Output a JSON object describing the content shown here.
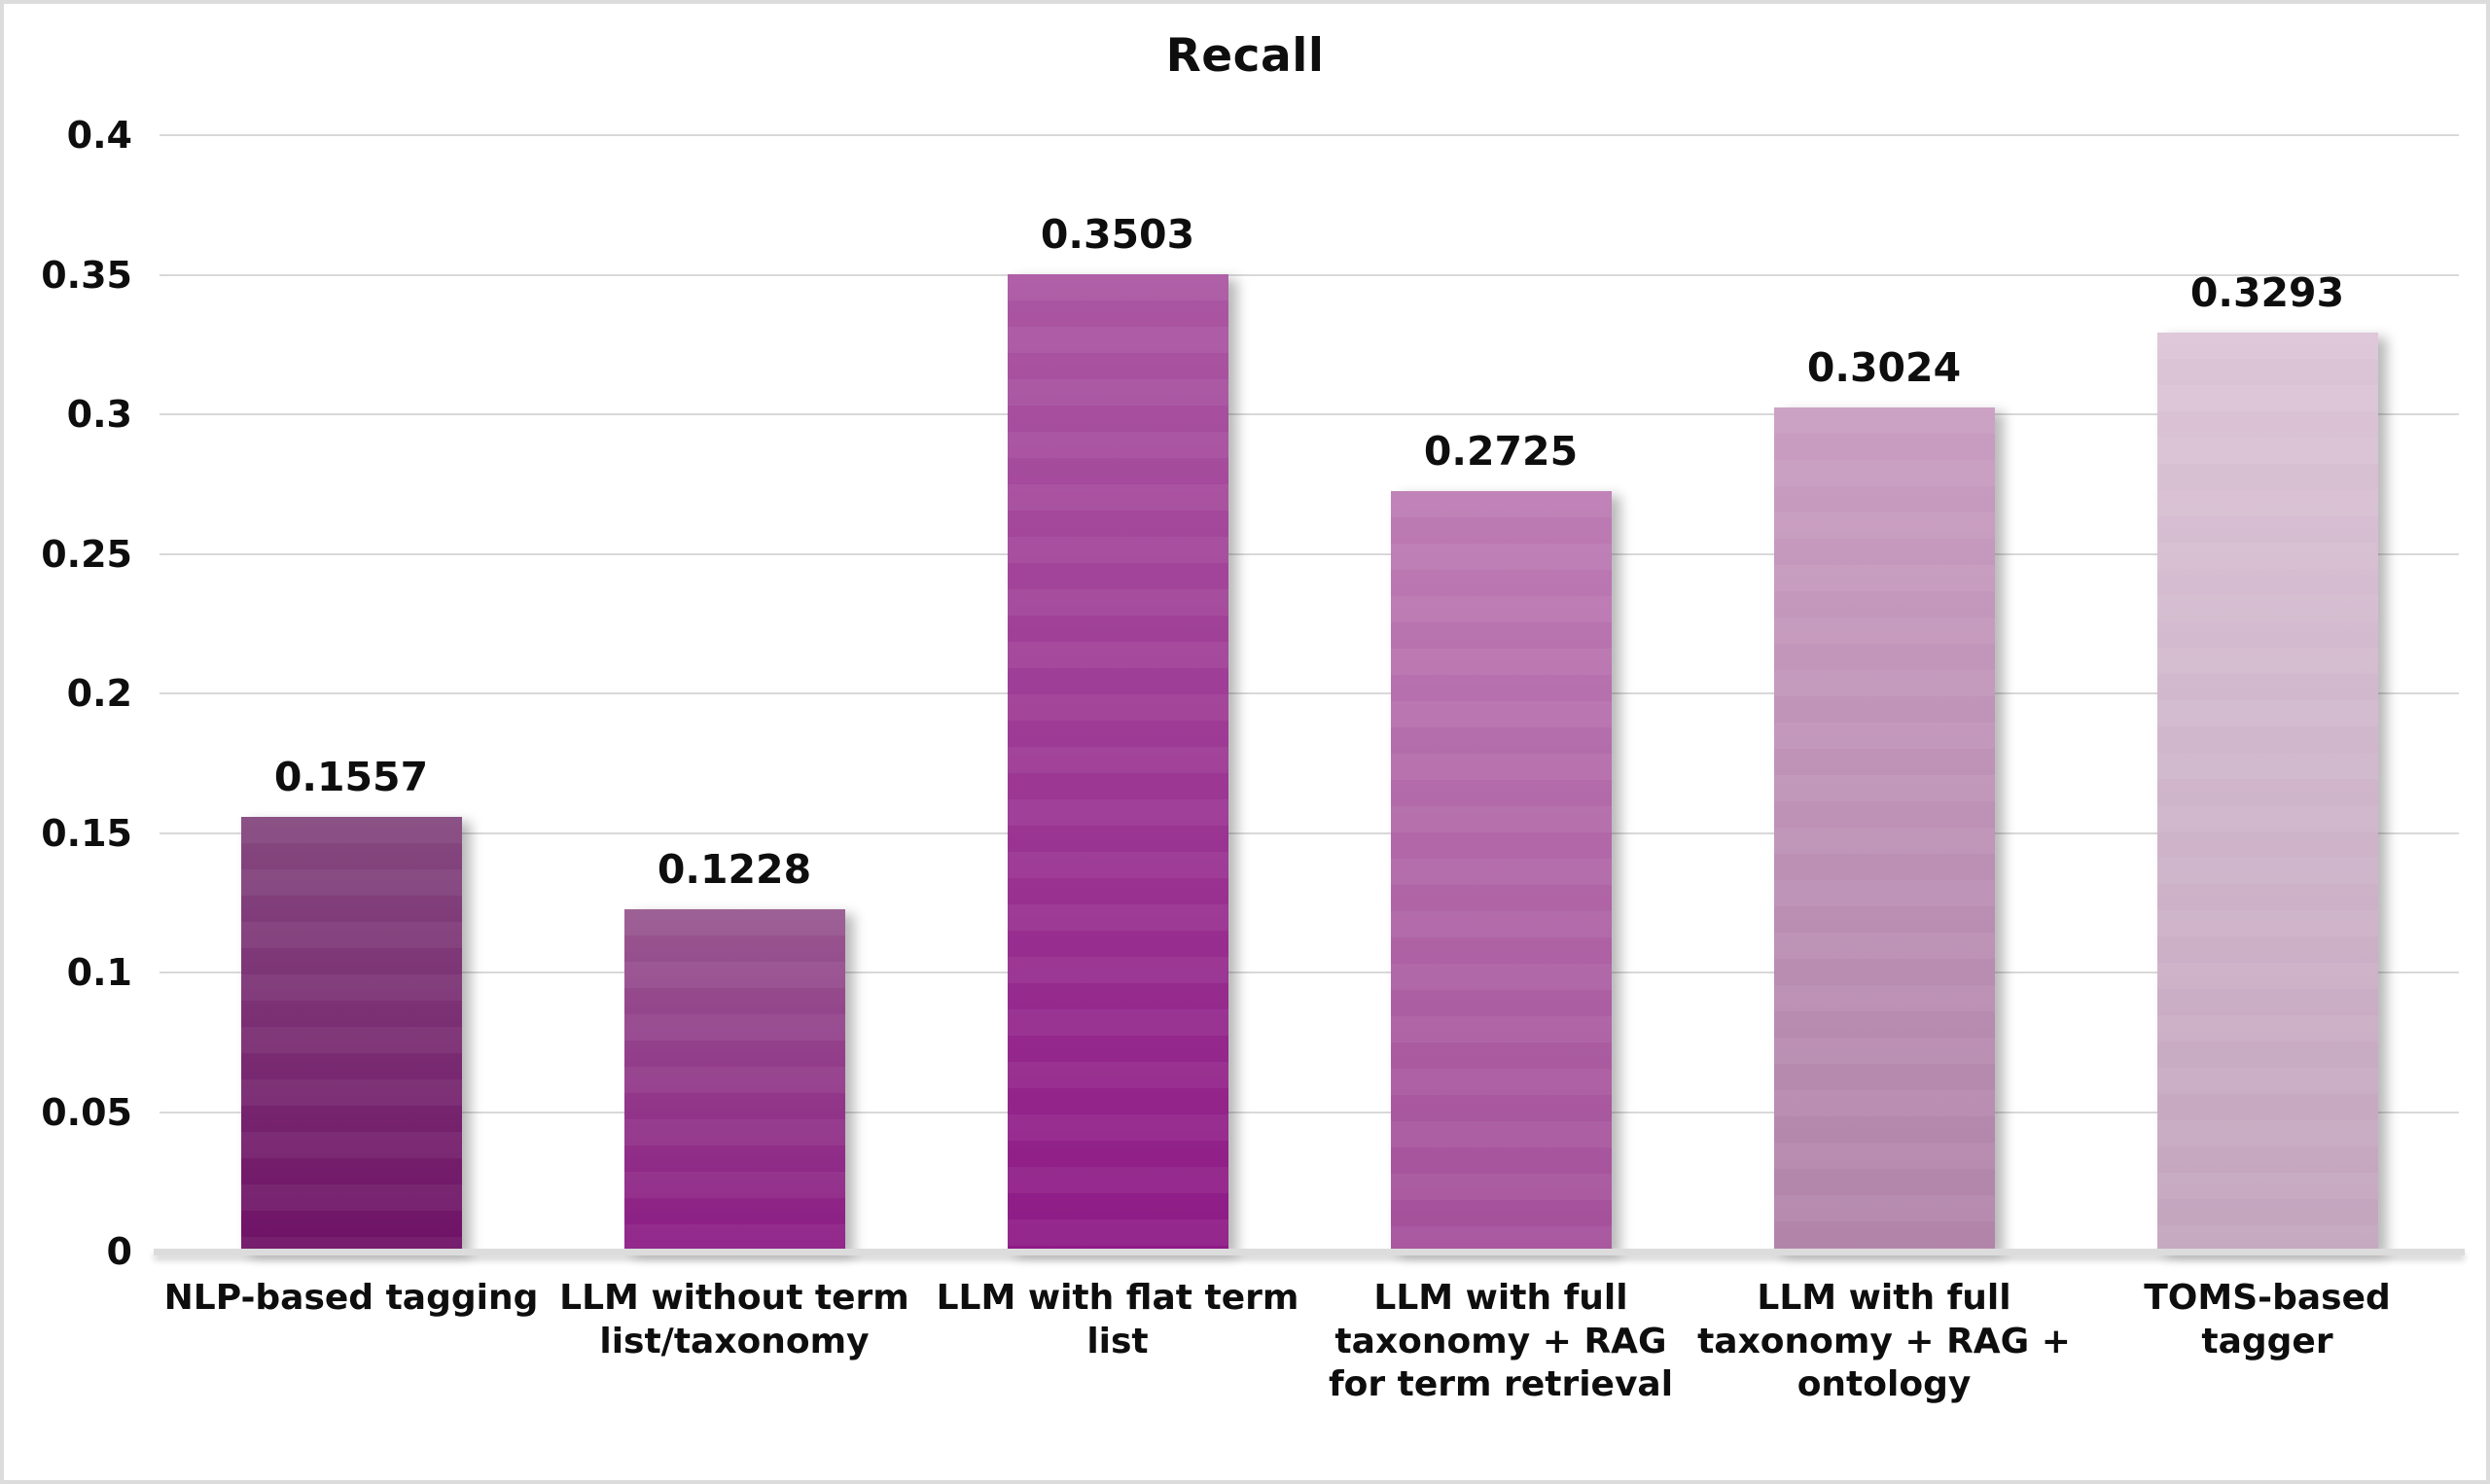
{
  "chart_data": {
    "type": "bar",
    "title": "Recall",
    "categories": [
      "NLP-based tagging",
      "LLM without term\nlist/taxonomy",
      "LLM with flat term\nlist",
      "LLM with full\ntaxonomy + RAG\nfor term retrieval",
      "LLM with full\ntaxonomy + RAG +\nontology",
      "TOMS-based\ntagger"
    ],
    "values": [
      0.1557,
      0.1228,
      0.3503,
      0.2725,
      0.3024,
      0.3293
    ],
    "value_labels": [
      "0.1557",
      "0.1228",
      "0.3503",
      "0.2725",
      "0.3024",
      "0.3293"
    ],
    "xlabel": "",
    "ylabel": "",
    "ylim": [
      0,
      0.4
    ],
    "ytick_step": 0.05,
    "yticks": [
      "0.4",
      "0.35",
      "0.3",
      "0.25",
      "0.2",
      "0.15",
      "0.1",
      "0.05",
      "0"
    ],
    "grid": true,
    "legend": "none",
    "bar_gradients": [
      {
        "top": "#85497F",
        "bottom": "#6F1266"
      },
      {
        "top": "#98588F",
        "bottom": "#8C1C85"
      },
      {
        "top": "#AB57A2",
        "bottom": "#8E1B86"
      },
      {
        "top": "#BD7CB4",
        "bottom": "#A4509A"
      },
      {
        "top": "#C99DC1",
        "bottom": "#B184AA"
      },
      {
        "top": "#DCC5D7",
        "bottom": "#C3A5BE"
      }
    ],
    "colors": {
      "background": "#FFFFFF",
      "grid_line": "#D9D9D9",
      "axis_line": "#DCDCDC",
      "text": "#111111",
      "frame_border": "#DCDCDC"
    }
  }
}
